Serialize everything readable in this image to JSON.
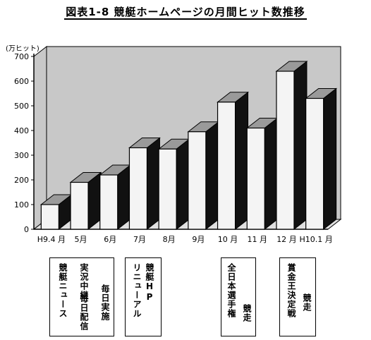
{
  "chart_data": {
    "type": "bar",
    "title": "図表1-8 競艇ホームページの月間ヒット数推移",
    "ylabel": "(万ヒット)",
    "categories": [
      "H9.4 月",
      "5月",
      "6月",
      "7月",
      "8月",
      "9月",
      "10 月",
      "11 月",
      "12 月",
      "H10.1 月"
    ],
    "values": [
      100,
      190,
      220,
      330,
      325,
      395,
      515,
      410,
      640,
      530
    ],
    "ylim": [
      0,
      700
    ],
    "yticks": [
      0,
      100,
      200,
      300,
      400,
      500,
      600,
      700
    ],
    "grid": false,
    "style": "3d-bar",
    "colors": {
      "front": "#f4f4f4",
      "top": "#9a9a9a",
      "side": "#111111",
      "wall": "#c8c8c8"
    }
  },
  "annotations": [
    {
      "lines": [
        "競艇ニュース",
        "実況中継",
        "毎日配信",
        "毎日実施"
      ]
    },
    {
      "lines": [
        "リニューアル",
        "競艇HP"
      ]
    },
    {
      "lines": [
        "全日本選手権",
        "競走"
      ]
    },
    {
      "lines": [
        "賞金王決定戦",
        "競走"
      ]
    }
  ]
}
